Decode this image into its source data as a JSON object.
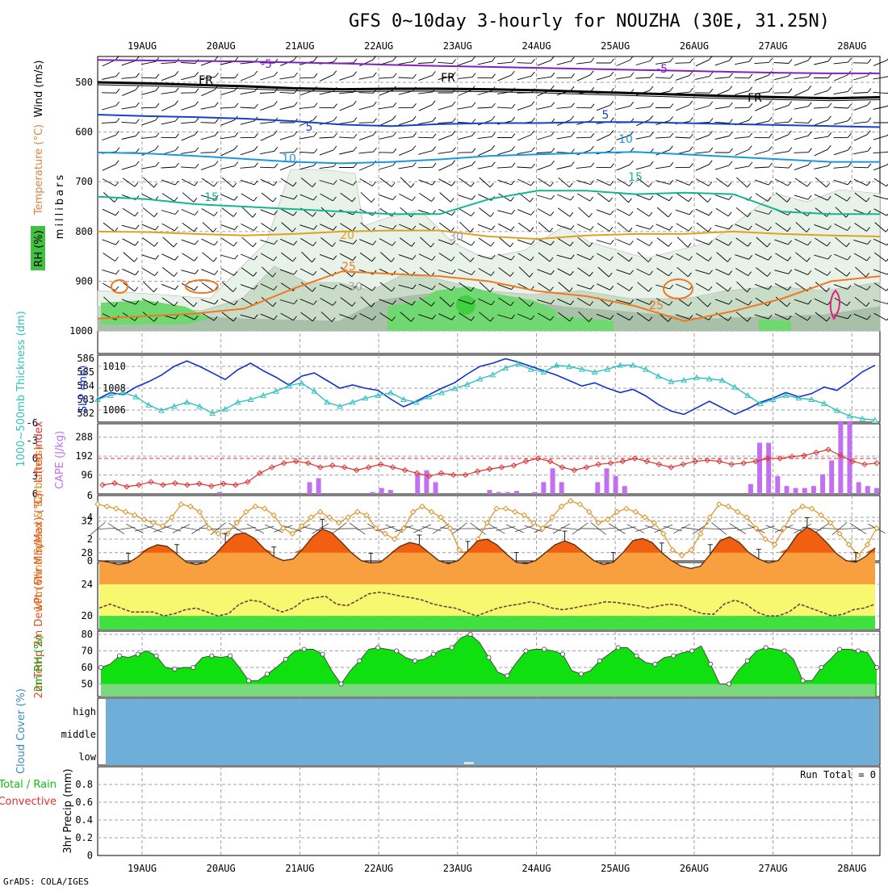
{
  "title": "GFS 0~10day 3-hourly for NOUZHA (30E, 31.25N)",
  "footer": "GrADS: COLA/IGES",
  "dates": [
    "19AUG",
    "20AUG",
    "21AUG",
    "22AUG",
    "23AUG",
    "24AUG",
    "25AUG",
    "26AUG",
    "27AUG",
    "28AUG"
  ],
  "colors": {
    "grid": "#a0a0a0",
    "slp": "#1030d0",
    "thickness": "#30c0c0",
    "cape": "#c070f0",
    "lifted": "#e03030",
    "wind": "#e09020",
    "temp_fill": "#f8a040",
    "temp_peak": "#f06010",
    "dew_fill_yellow": "#f8f870",
    "dew_fill_green": "#40e040",
    "rh_fill": "#10e010",
    "rh_fill_light": "#60f060",
    "cloud": "#6eaed8"
  },
  "chart_data": [
    {
      "type": "contour",
      "name": "upper-air",
      "ylabel": "millibars",
      "side_labels": {
        "wind": "Wind (m/s)",
        "temperature": "Temperature (°C)",
        "rh": "RH (%)"
      },
      "yticks": [
        500,
        600,
        700,
        800,
        900,
        1000
      ],
      "ylim": [
        1050,
        450
      ],
      "contour_labels": [
        "-5",
        "FR",
        "5",
        "10",
        "15",
        "20",
        "25",
        "30"
      ],
      "isotherms": [
        {
          "label": "-5",
          "color": "#8020c0",
          "values": [
            455,
            456,
            457,
            458,
            460,
            462,
            465,
            467,
            469,
            471,
            473,
            475,
            477,
            479,
            481,
            482,
            482
          ]
        },
        {
          "label": "FR",
          "color": "#000000",
          "values": [
            500,
            502,
            505,
            508,
            512,
            514,
            513,
            513,
            514,
            516,
            519,
            522,
            525,
            528,
            530,
            532,
            530
          ]
        },
        {
          "label": "5",
          "color": "#1840c8",
          "values": [
            565,
            568,
            570,
            573,
            578,
            585,
            588,
            584,
            582,
            582,
            580,
            580,
            582,
            584,
            586,
            588,
            590
          ]
        },
        {
          "label": "10",
          "color": "#1898e0",
          "values": [
            641,
            643,
            648,
            654,
            660,
            663,
            660,
            655,
            648,
            645,
            642,
            640,
            645,
            650,
            655,
            660,
            660
          ]
        },
        {
          "label": "15",
          "color": "#10b890",
          "values": [
            730,
            735,
            745,
            750,
            755,
            760,
            765,
            765,
            735,
            718,
            718,
            725,
            722,
            725,
            760,
            765,
            765
          ]
        },
        {
          "label": "20",
          "color": "#e0a020",
          "values": [
            800,
            801,
            805,
            808,
            805,
            800,
            798,
            798,
            810,
            815,
            808,
            805,
            805,
            800,
            805,
            808,
            810
          ]
        },
        {
          "label": "25",
          "color": "#f07820",
          "values": [
            975,
            970,
            965,
            955,
            915,
            880,
            885,
            890,
            900,
            920,
            930,
            950,
            980,
            960,
            935,
            900,
            890
          ]
        }
      ]
    },
    {
      "type": "line",
      "name": "SLP and Thickness",
      "ylabel_left": "1000~500mb Thickness (dm)",
      "ylabel_right": "SLP (mb)",
      "left_ticks": [
        582,
        583,
        584,
        585,
        586
      ],
      "right_ticks": [
        1006,
        1008,
        1010
      ],
      "series": [
        {
          "name": "SLP (mb)",
          "values": [
            1007.0,
            1007.6,
            1007.4,
            1008.1,
            1008.6,
            1009.2,
            1010.0,
            1010.5,
            1010.0,
            1009.4,
            1008.8,
            1009.7,
            1010.3,
            1009.6,
            1009.0,
            1008.3,
            1009.1,
            1009.4,
            1008.7,
            1008.0,
            1008.3,
            1008.0,
            1007.8,
            1007.0,
            1006.3,
            1006.8,
            1007.4,
            1008.0,
            1008.5,
            1009.3,
            1010.0,
            1010.3,
            1010.7,
            1010.4,
            1010.0,
            1009.6,
            1009.2,
            1008.7,
            1008.2,
            1008.5,
            1008.0,
            1007.6,
            1007.9,
            1007.3,
            1006.5,
            1005.9,
            1005.6,
            1006.2,
            1006.8,
            1006.2,
            1005.6,
            1006.1,
            1006.7,
            1007.1,
            1007.6,
            1007.2,
            1007.5,
            1008.1,
            1007.8,
            1008.6,
            1009.5,
            1010.1
          ]
        },
        {
          "name": "1000~500mb Thickness (dm)",
          "values": [
            583.0,
            583.3,
            583.5,
            583.2,
            582.6,
            582.2,
            582.5,
            582.8,
            582.5,
            582.0,
            582.3,
            582.8,
            583.0,
            583.3,
            583.6,
            584.0,
            584.2,
            583.6,
            582.8,
            582.5,
            582.8,
            583.1,
            583.3,
            583.5,
            583.0,
            582.8,
            583.2,
            583.5,
            583.8,
            584.1,
            584.5,
            584.8,
            585.3,
            585.6,
            585.2,
            585.0,
            585.5,
            585.4,
            585.2,
            585.0,
            585.2,
            585.5,
            585.5,
            585.2,
            584.7,
            584.3,
            584.4,
            584.6,
            584.5,
            584.4,
            583.9,
            583.3,
            582.7,
            583.0,
            583.3,
            583.1,
            583.0,
            582.7,
            582.2,
            581.8,
            581.6,
            581.5
          ]
        }
      ]
    },
    {
      "type": "bar",
      "name": "CAPE and Lifted Index",
      "ylabel_left": "Lifted Index",
      "ylabel_right": "CAPE (J/kg)",
      "left_ticks": [
        "-6",
        "-3",
        "0",
        "3",
        "6"
      ],
      "right_ticks": [
        96,
        192,
        288
      ],
      "cape_values": [
        0,
        0,
        0,
        0,
        0,
        0,
        0,
        0,
        0,
        0,
        0,
        0,
        0,
        10,
        0,
        0,
        0,
        0,
        0,
        0,
        0,
        0,
        0,
        60,
        80,
        0,
        0,
        0,
        0,
        0,
        10,
        30,
        20,
        0,
        0,
        100,
        120,
        60,
        0,
        0,
        0,
        0,
        0,
        20,
        10,
        10,
        15,
        0,
        10,
        60,
        130,
        60,
        0,
        0,
        0,
        60,
        130,
        90,
        40,
        0,
        0,
        0,
        0,
        0,
        0,
        0,
        0,
        0,
        0,
        0,
        0,
        0,
        50,
        260,
        260,
        90,
        40,
        30,
        30,
        40,
        100,
        170,
        370,
        370,
        60,
        40,
        30
      ],
      "lifted_index": [
        4.5,
        4.2,
        4.8,
        4.5,
        4.0,
        4.5,
        4.2,
        4.5,
        4.3,
        4.7,
        4.3,
        4.5,
        4.0,
        2.5,
        1.5,
        0.8,
        0.5,
        0.8,
        1.5,
        1.2,
        1.5,
        2.0,
        1.5,
        1.0,
        1.5,
        2.0,
        2.5,
        3.0,
        2.5,
        2.8,
        2.8,
        2.2,
        1.8,
        1.5,
        1.2,
        0.5,
        0.0,
        0.5,
        1.5,
        2.0,
        1.5,
        1.0,
        0.8,
        0.5,
        0.0,
        0.5,
        1.0,
        1.5,
        1.0,
        0.5,
        0.3,
        0.5,
        1.0,
        0.8,
        0.5,
        0.0,
        0.0,
        -0.3,
        -0.5,
        -1.0,
        -1.5,
        -0.5,
        0.5,
        1.0,
        0.8
      ]
    },
    {
      "type": "line",
      "name": "10m Wind Speed & Barbs",
      "ylabel": "10m Wind Speed & Barbs (m/s)",
      "yticks": [
        0,
        2,
        4,
        6
      ],
      "values": [
        5.2,
        5.0,
        4.8,
        4.5,
        4.2,
        3.8,
        3.5,
        3.2,
        4.0,
        5.2,
        5.0,
        4.5,
        3.0,
        2.5,
        2.5,
        3.5,
        4.5,
        5.0,
        4.8,
        4.2,
        3.0,
        2.5,
        3.2,
        4.0,
        4.5,
        4.0,
        3.5,
        4.0,
        4.5,
        4.2,
        3.0,
        2.5,
        2.0,
        3.0,
        4.5,
        5.0,
        4.5,
        4.0,
        3.0,
        1.0,
        0.5,
        2.0,
        3.5,
        4.8,
        4.8,
        4.5,
        4.2,
        3.5,
        3.0,
        4.0,
        5.0,
        5.5,
        5.2,
        4.5,
        3.5,
        3.8,
        4.5,
        4.8,
        4.5,
        4.0,
        3.5,
        2.5,
        1.0,
        0.5,
        1.0,
        2.5,
        4.0,
        5.2,
        5.0,
        4.5,
        4.0,
        3.0,
        2.0,
        1.5,
        3.0,
        4.5,
        5.0,
        4.8,
        4.2,
        3.5,
        2.5,
        1.5,
        0.5,
        1.5,
        3.0
      ]
    },
    {
      "type": "area",
      "name": "2m Temp / DewPt",
      "ylabel": "2m Temp 2m DewPt (6hr Min/Max) (°C)",
      "yticks": [
        20,
        24,
        28,
        32
      ],
      "temp": [
        27.0,
        26.8,
        26.5,
        26.7,
        27.5,
        28.5,
        29.0,
        28.8,
        27.8,
        26.8,
        26.5,
        26.8,
        27.8,
        29.2,
        30.3,
        30.5,
        29.8,
        28.5,
        27.5,
        27.0,
        27.2,
        28.5,
        30.0,
        31.0,
        30.5,
        29.3,
        28.0,
        27.0,
        26.7,
        26.8,
        27.8,
        28.8,
        29.3,
        29.0,
        28.0,
        27.0,
        26.6,
        27.0,
        28.2,
        29.5,
        29.7,
        29.0,
        27.8,
        26.8,
        26.6,
        27.0,
        28.0,
        29.0,
        29.5,
        29.0,
        28.0,
        27.0,
        26.5,
        26.8,
        28.0,
        29.5,
        29.8,
        29.3,
        28.0,
        27.0,
        26.3,
        26.0,
        26.3,
        27.8,
        29.5,
        30.0,
        29.3,
        28.0,
        27.2,
        26.7,
        27.0,
        28.5,
        30.3,
        31.2,
        30.5,
        29.3,
        27.9,
        27.0,
        26.8,
        27.5,
        28.6
      ],
      "dewpt": [
        21.0,
        21.5,
        21.0,
        20.5,
        20.5,
        20.5,
        20.0,
        20.3,
        20.8,
        21.0,
        20.5,
        20.0,
        20.3,
        21.5,
        22.0,
        21.8,
        21.0,
        20.5,
        21.0,
        22.0,
        22.3,
        22.5,
        21.5,
        21.3,
        22.0,
        22.8,
        23.0,
        22.8,
        22.5,
        22.3,
        22.0,
        21.5,
        21.2,
        21.0,
        20.5,
        20.0,
        20.5,
        21.0,
        21.3,
        21.5,
        21.8,
        21.5,
        21.0,
        20.8,
        21.0,
        21.3,
        21.5,
        21.8,
        21.7,
        21.5,
        21.3,
        21.0,
        21.3,
        21.5,
        21.3,
        20.7,
        20.3,
        20.2,
        21.5,
        22.0,
        21.5,
        20.5,
        20.0,
        20.0,
        20.5,
        21.5,
        21.0,
        20.5,
        20.0,
        20.2,
        20.8,
        21.0,
        21.5
      ]
    },
    {
      "type": "area",
      "name": "2m RH",
      "ylabel": "2m RH (%)",
      "yticks": [
        50,
        60,
        70,
        80
      ],
      "values": [
        60,
        62,
        67,
        66,
        68,
        70,
        67,
        60,
        59,
        60,
        60,
        66,
        67,
        66,
        67,
        60,
        52,
        52,
        56,
        60,
        65,
        70,
        71,
        71,
        68,
        58,
        50,
        58,
        64,
        71,
        72,
        71,
        70,
        66,
        64,
        65,
        68,
        71,
        72,
        78,
        80,
        75,
        66,
        57,
        55,
        63,
        70,
        71,
        71,
        70,
        68,
        58,
        56,
        58,
        64,
        68,
        72,
        72,
        67,
        63,
        62,
        66,
        67,
        69,
        70,
        73,
        62,
        50,
        50,
        58,
        64,
        70,
        72,
        71,
        70,
        65,
        52,
        52,
        60,
        65,
        71,
        71,
        70,
        69,
        60
      ]
    },
    {
      "type": "area",
      "name": "Cloud Cover",
      "ylabel": "Cloud Cover (%)",
      "levels": [
        "high",
        "middle",
        "low"
      ],
      "high": 100,
      "middle": 100,
      "low": 100
    },
    {
      "type": "bar",
      "name": "3hr Precip",
      "ylabel": "3hr Precip (mm)",
      "side_labels": {
        "total": "Total / Rain",
        "convective": "Convective"
      },
      "yticks": [
        "0",
        "0.2",
        "0.4",
        "0.6",
        "0.8"
      ],
      "ylim": [
        0,
        1.0
      ],
      "run_total_label": "Run Total = 0",
      "values": []
    }
  ]
}
